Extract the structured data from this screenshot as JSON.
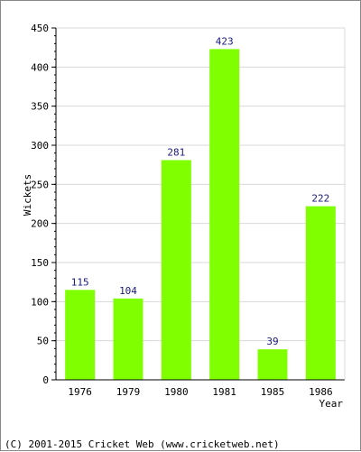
{
  "chart_data": {
    "type": "bar",
    "categories": [
      "1976",
      "1979",
      "1980",
      "1981",
      "1985",
      "1986"
    ],
    "values": [
      115,
      104,
      281,
      423,
      39,
      222
    ],
    "xlabel": "Year",
    "ylabel": "Wickets",
    "ylim": [
      0,
      450
    ],
    "yticks": [
      0,
      50,
      100,
      150,
      200,
      250,
      300,
      350,
      400,
      450
    ],
    "grid": true,
    "bar_color": "#80ff00",
    "value_label_color": "#1a1a80"
  },
  "footer": {
    "copyright": "(C) 2001-2015 Cricket Web (www.cricketweb.net)"
  }
}
